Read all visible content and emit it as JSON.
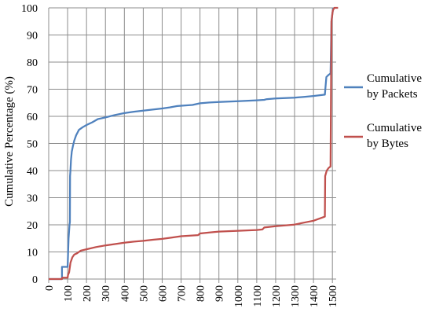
{
  "chart_data": {
    "type": "line",
    "title": "",
    "xlabel": "",
    "ylabel": "Cumulative Percentage (%)",
    "xlim": [
      0,
      1500
    ],
    "ylim": [
      0,
      100
    ],
    "x_ticks": [
      0,
      100,
      200,
      300,
      400,
      500,
      600,
      700,
      800,
      900,
      1000,
      1100,
      1200,
      1300,
      1400,
      1500
    ],
    "y_ticks": [
      0,
      10,
      20,
      30,
      40,
      50,
      60,
      70,
      80,
      90,
      100
    ],
    "grid": "vertical-and-horizontal",
    "legend_position": "right",
    "series": [
      {
        "name": "Cumulative by Packets",
        "color": "#4f81bd",
        "points": [
          [
            0,
            0
          ],
          [
            70,
            0
          ],
          [
            70,
            4.5
          ],
          [
            100,
            4.5
          ],
          [
            105,
            15
          ],
          [
            110,
            20
          ],
          [
            112,
            21
          ],
          [
            113,
            38
          ],
          [
            115,
            40
          ],
          [
            118,
            44
          ],
          [
            122,
            47
          ],
          [
            128,
            49
          ],
          [
            135,
            51
          ],
          [
            145,
            53
          ],
          [
            160,
            55
          ],
          [
            180,
            56
          ],
          [
            200,
            56.8
          ],
          [
            230,
            57.8
          ],
          [
            260,
            59
          ],
          [
            300,
            59.6
          ],
          [
            350,
            60.5
          ],
          [
            400,
            61.2
          ],
          [
            450,
            61.7
          ],
          [
            500,
            62.1
          ],
          [
            550,
            62.5
          ],
          [
            600,
            62.9
          ],
          [
            640,
            63.3
          ],
          [
            680,
            63.8
          ],
          [
            760,
            64.2
          ],
          [
            800,
            64.8
          ],
          [
            850,
            65.1
          ],
          [
            900,
            65.3
          ],
          [
            1000,
            65.6
          ],
          [
            1100,
            65.9
          ],
          [
            1140,
            66.1
          ],
          [
            1150,
            66.3
          ],
          [
            1200,
            66.6
          ],
          [
            1300,
            66.9
          ],
          [
            1350,
            67.2
          ],
          [
            1400,
            67.5
          ],
          [
            1460,
            68
          ],
          [
            1468,
            74.5
          ],
          [
            1480,
            75.3
          ],
          [
            1490,
            75.8
          ],
          [
            1495,
            95
          ],
          [
            1500,
            98
          ],
          [
            1505,
            100
          ]
        ]
      },
      {
        "name": "Cumulative by Bytes",
        "color": "#c0504d",
        "points": [
          [
            0,
            0
          ],
          [
            70,
            0
          ],
          [
            72,
            0.5
          ],
          [
            100,
            0.5
          ],
          [
            102,
            1.5
          ],
          [
            108,
            2.5
          ],
          [
            110,
            3.5
          ],
          [
            115,
            6
          ],
          [
            125,
            8
          ],
          [
            135,
            9
          ],
          [
            150,
            9.5
          ],
          [
            170,
            10.5
          ],
          [
            200,
            11
          ],
          [
            250,
            11.8
          ],
          [
            300,
            12.4
          ],
          [
            350,
            12.9
          ],
          [
            400,
            13.4
          ],
          [
            450,
            13.8
          ],
          [
            500,
            14.1
          ],
          [
            550,
            14.5
          ],
          [
            600,
            14.8
          ],
          [
            650,
            15.3
          ],
          [
            700,
            15.8
          ],
          [
            790,
            16.2
          ],
          [
            800,
            16.8
          ],
          [
            850,
            17.2
          ],
          [
            900,
            17.5
          ],
          [
            1000,
            17.8
          ],
          [
            1100,
            18.1
          ],
          [
            1130,
            18.3
          ],
          [
            1140,
            19
          ],
          [
            1200,
            19.5
          ],
          [
            1300,
            20.1
          ],
          [
            1350,
            20.8
          ],
          [
            1400,
            21.5
          ],
          [
            1460,
            23
          ],
          [
            1462,
            38
          ],
          [
            1470,
            40
          ],
          [
            1480,
            41
          ],
          [
            1490,
            41.5
          ],
          [
            1495,
            95
          ],
          [
            1502,
            99
          ],
          [
            1510,
            100
          ],
          [
            1530,
            100
          ]
        ]
      }
    ]
  }
}
